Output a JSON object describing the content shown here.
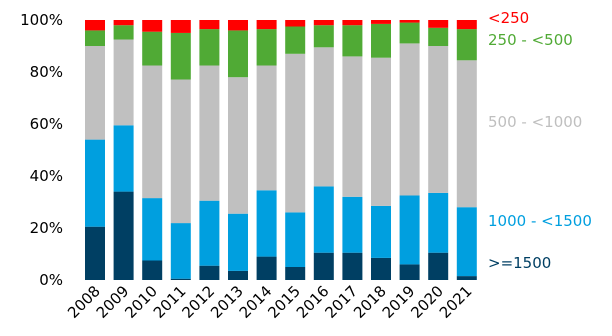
{
  "chart_data": {
    "type": "bar",
    "stacked": true,
    "percent": true,
    "title": "",
    "xlabel": "",
    "ylabel": "",
    "ylim": [
      0,
      100
    ],
    "yticks": [
      "0%",
      "20%",
      "40%",
      "60%",
      "80%",
      "100%"
    ],
    "grid": false,
    "legend_position": "right",
    "categories": [
      "2008",
      "2009",
      "2010",
      "2011",
      "2012",
      "2013",
      "2014",
      "2015",
      "2016",
      "2017",
      "2018",
      "2019",
      "2020",
      "2021"
    ],
    "series": [
      {
        "name": ">=1500",
        "color": "#003f63",
        "label_color": "#003f63",
        "values": [
          20.5,
          34,
          7.5,
          0.5,
          5.5,
          3.5,
          9,
          5,
          10.5,
          10.5,
          8.5,
          6,
          10.5,
          1.5
        ]
      },
      {
        "name": "1000 - <1500",
        "color": "#009fdf",
        "label_color": "#009fdf",
        "values": [
          33.5,
          25.5,
          24,
          21.5,
          25,
          22,
          25.5,
          21,
          25.5,
          21.5,
          20,
          26.5,
          23,
          26.5
        ]
      },
      {
        "name": "500 - <1000",
        "color": "#c0c0c0",
        "label_color": "#bfbfbf",
        "values": [
          36,
          33,
          51,
          55.5,
          52,
          52.5,
          48,
          61,
          53.5,
          54,
          57,
          58.5,
          56.5,
          56.5
        ]
      },
      {
        "name": "250 - <500",
        "color": "#50aa35",
        "label_color": "#50aa35",
        "values": [
          6,
          5.5,
          13,
          18,
          14,
          18,
          14,
          10.5,
          8.5,
          12,
          13,
          8,
          7,
          12
        ]
      },
      {
        "name": "<250",
        "color": "#ff0000",
        "label_color": "#ff0000",
        "values": [
          4,
          2,
          4.5,
          5,
          3.5,
          4,
          3.5,
          2.5,
          2,
          2,
          1.5,
          1,
          3,
          3.5
        ]
      }
    ]
  }
}
